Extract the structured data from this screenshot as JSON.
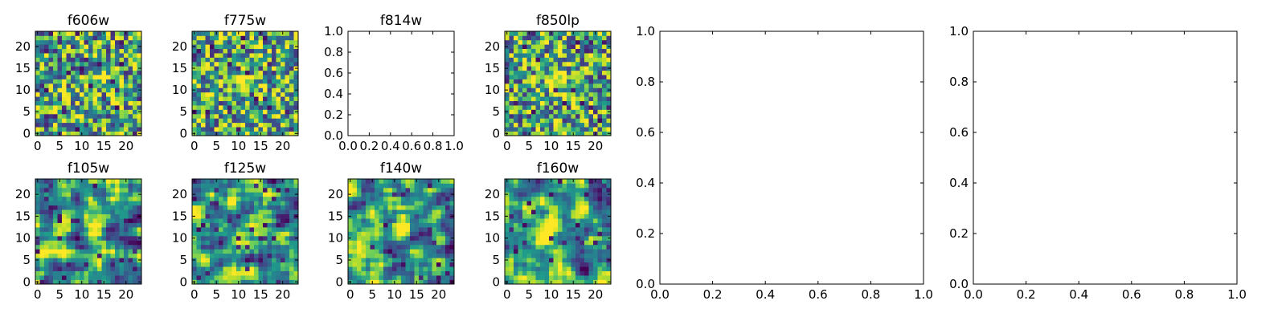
{
  "figure": {
    "image_panels": [
      {
        "title": "f606w",
        "ticks_x": [
          "0",
          "5",
          "10",
          "15",
          "20"
        ],
        "ticks_y": [
          "0",
          "5",
          "10",
          "15",
          "20"
        ],
        "extent": [
          0,
          24
        ],
        "bright_center": [
          12,
          12
        ]
      },
      {
        "title": "f775w",
        "ticks_x": [
          "0",
          "5",
          "10",
          "15",
          "20"
        ],
        "ticks_y": [
          "0",
          "5",
          "10",
          "15",
          "20"
        ],
        "extent": [
          0,
          24
        ],
        "bright_center": [
          11,
          12
        ]
      },
      {
        "title": "f850lp",
        "ticks_x": [
          "0",
          "5",
          "10",
          "15",
          "20"
        ],
        "ticks_y": [
          "0",
          "5",
          "10",
          "15",
          "20"
        ],
        "extent": [
          0,
          24
        ],
        "bright_center": [
          12,
          12
        ]
      },
      {
        "title": "f105w",
        "ticks_x": [
          "0",
          "5",
          "10",
          "15",
          "20"
        ],
        "ticks_y": [
          "0",
          "5",
          "10",
          "15",
          "20"
        ],
        "extent": [
          0,
          24
        ],
        "bright_center": [
          13,
          13
        ]
      },
      {
        "title": "f125w",
        "ticks_x": [
          "0",
          "5",
          "10",
          "15",
          "20"
        ],
        "ticks_y": [
          "0",
          "5",
          "10",
          "15",
          "20"
        ],
        "extent": [
          0,
          24
        ],
        "bright_center": [
          12,
          12
        ]
      },
      {
        "title": "f140w",
        "ticks_x": [
          "0",
          "5",
          "10",
          "15",
          "20"
        ],
        "ticks_y": [
          "0",
          "5",
          "10",
          "15",
          "20"
        ],
        "extent": [
          0,
          24
        ],
        "bright_center": [
          11,
          12
        ]
      },
      {
        "title": "f160w",
        "ticks_x": [
          "0",
          "5",
          "10",
          "15",
          "20"
        ],
        "ticks_y": [
          "0",
          "5",
          "10",
          "15",
          "20"
        ],
        "extent": [
          0,
          24
        ],
        "bright_center": [
          10,
          12
        ]
      }
    ],
    "empty_panels": [
      {
        "title": "f814w",
        "ticks_x": [
          "0.0",
          "0.2",
          "0.4",
          "0.6",
          "0.8",
          "1.0"
        ],
        "ticks_y": [
          "0.0",
          "0.2",
          "0.4",
          "0.6",
          "0.8",
          "1.0"
        ]
      },
      {
        "title": "",
        "ticks_x": [
          "0.0",
          "0.2",
          "0.4",
          "0.6",
          "0.8",
          "1.0"
        ],
        "ticks_y": [
          "0.0",
          "0.2",
          "0.4",
          "0.6",
          "0.8",
          "1.0"
        ]
      },
      {
        "title": "",
        "ticks_x": [
          "0.0",
          "0.2",
          "0.4",
          "0.6",
          "0.8",
          "1.0"
        ],
        "ticks_y": [
          "0.0",
          "0.2",
          "0.4",
          "0.6",
          "0.8",
          "1.0"
        ]
      }
    ]
  },
  "chart_data": [
    {
      "type": "heatmap",
      "title": "f606w",
      "xlim": [
        0,
        24
      ],
      "ylim": [
        0,
        24
      ],
      "colormap": "viridis",
      "grid": false
    },
    {
      "type": "heatmap",
      "title": "f775w",
      "xlim": [
        0,
        24
      ],
      "ylim": [
        0,
        24
      ],
      "colormap": "viridis",
      "grid": false
    },
    {
      "type": "scatter",
      "title": "f814w",
      "xlim": [
        0.0,
        1.0
      ],
      "ylim": [
        0.0,
        1.0
      ],
      "values": [],
      "grid": false
    },
    {
      "type": "heatmap",
      "title": "f850lp",
      "xlim": [
        0,
        24
      ],
      "ylim": [
        0,
        24
      ],
      "colormap": "viridis",
      "grid": false
    },
    {
      "type": "heatmap",
      "title": "f105w",
      "xlim": [
        0,
        24
      ],
      "ylim": [
        0,
        24
      ],
      "colormap": "viridis",
      "grid": false
    },
    {
      "type": "heatmap",
      "title": "f125w",
      "xlim": [
        0,
        24
      ],
      "ylim": [
        0,
        24
      ],
      "colormap": "viridis",
      "grid": false
    },
    {
      "type": "heatmap",
      "title": "f140w",
      "xlim": [
        0,
        24
      ],
      "ylim": [
        0,
        24
      ],
      "colormap": "viridis",
      "grid": false
    },
    {
      "type": "heatmap",
      "title": "f160w",
      "xlim": [
        0,
        24
      ],
      "ylim": [
        0,
        24
      ],
      "colormap": "viridis",
      "grid": false
    },
    {
      "type": "scatter",
      "title": "",
      "xlim": [
        0.0,
        1.0
      ],
      "ylim": [
        0.0,
        1.0
      ],
      "values": [],
      "grid": false
    },
    {
      "type": "scatter",
      "title": "",
      "xlim": [
        0.0,
        1.0
      ],
      "ylim": [
        0.0,
        1.0
      ],
      "values": [],
      "grid": false
    }
  ]
}
